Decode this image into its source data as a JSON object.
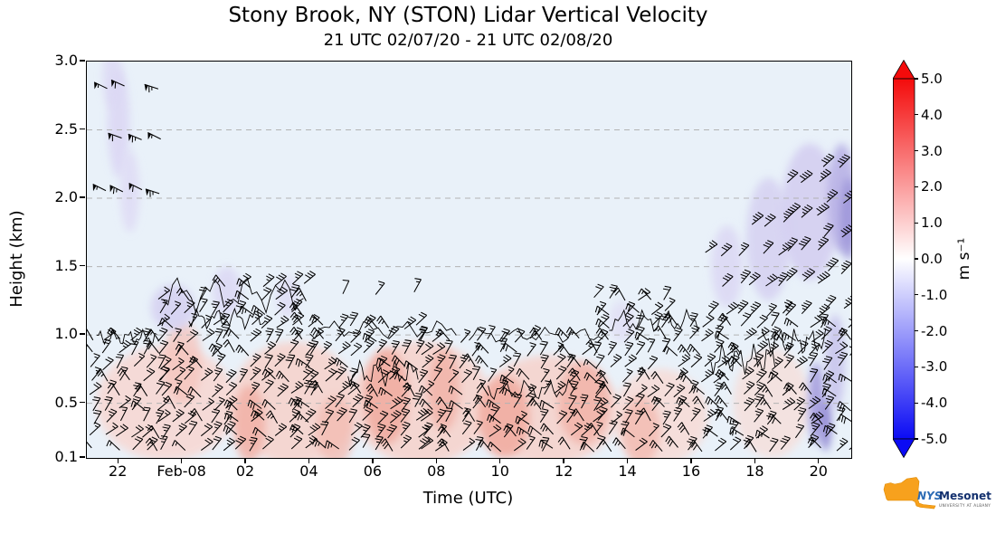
{
  "chart_data": {
    "type": "time-height lidar wind-barb / filled vertical-velocity plot",
    "title": "Stony Brook, NY (STON) Lidar Vertical Velocity",
    "subtitle": "21 UTC 02/07/20 - 21 UTC 02/08/20",
    "xlabel": "Time (UTC)",
    "ylabel": "Height (km)",
    "station": "STON",
    "location": "Stony Brook, NY",
    "time_span": {
      "start": "21 UTC 02/07/20",
      "end": "21 UTC 02/08/20",
      "hours": 24
    },
    "ylim_km": [
      0.1,
      3.0
    ],
    "gridlines_km": [
      0.5,
      1.0,
      1.5,
      2.0,
      2.5
    ],
    "background_color": "#e9f1f9",
    "x_ticks": [
      {
        "t": 1,
        "label": "22"
      },
      {
        "t": 3,
        "label": "Feb-08"
      },
      {
        "t": 5,
        "label": "02"
      },
      {
        "t": 7,
        "label": "04"
      },
      {
        "t": 9,
        "label": "06"
      },
      {
        "t": 11,
        "label": "08"
      },
      {
        "t": 13,
        "label": "10"
      },
      {
        "t": 15,
        "label": "12"
      },
      {
        "t": 17,
        "label": "14"
      },
      {
        "t": 19,
        "label": "16"
      },
      {
        "t": 21,
        "label": "18"
      },
      {
        "t": 23,
        "label": "20"
      }
    ],
    "y_ticks": [
      {
        "v": 3.0,
        "label": "3.0"
      },
      {
        "v": 2.5,
        "label": "2.5"
      },
      {
        "v": 2.0,
        "label": "2.0"
      },
      {
        "v": 1.5,
        "label": "1.5"
      },
      {
        "v": 1.0,
        "label": "1.0"
      },
      {
        "v": 0.5,
        "label": "0.5"
      },
      {
        "v": 0.1,
        "label": "0.1"
      }
    ],
    "colorbar": {
      "label": "m s⁻¹",
      "ticks": [
        "5.0",
        "4.0",
        "3.0",
        "2.0",
        "1.0",
        "0.0",
        "-1.0",
        "-2.0",
        "-3.0",
        "-4.0",
        "-5.0"
      ],
      "vmin": -5.0,
      "vmax": 5.0,
      "positive_color": "#f40b0b",
      "zero_color": "#ffffff",
      "negative_color": "#0b0bf4",
      "extend": "both"
    },
    "description": "Near-zero (pale blue) vertical velocity aloft; weak updrafts (~+1 m/s, pink) in the boundary layer below ~1 km; weak downdrafts (purple, -1 to -2 m/s) near barb tops and after 16 UTC 02/08. Dense wind barbs below ~1.2 km all period, 50+ kt barbs at 2-3 km from ~21:30-23:30 UTC 02/07, barb tops rising to ~2.3 km after 17 UTC 02/08.",
    "shading_blobs": [
      {
        "t": 2.5,
        "h": 0.5,
        "rt": 2.2,
        "rh": 0.42,
        "c": "#f8d7d2",
        "o": 0.85
      },
      {
        "t": 6.5,
        "h": 0.5,
        "rt": 2.0,
        "rh": 0.45,
        "c": "#f7d2cb",
        "o": 0.85
      },
      {
        "t": 10.5,
        "h": 0.5,
        "rt": 2.2,
        "rh": 0.45,
        "c": "#f7d2cb",
        "o": 0.85
      },
      {
        "t": 14.5,
        "h": 0.45,
        "rt": 2.2,
        "rh": 0.4,
        "c": "#f7d2cb",
        "o": 0.85
      },
      {
        "t": 18.0,
        "h": 0.4,
        "rt": 1.5,
        "rh": 0.35,
        "c": "#f8dad4",
        "o": 0.8
      },
      {
        "t": 21.5,
        "h": 0.5,
        "rt": 1.2,
        "rh": 0.4,
        "c": "#f8dcd6",
        "o": 0.7
      },
      {
        "t": 5.1,
        "h": 0.35,
        "rt": 0.5,
        "rh": 0.28,
        "c": "#f2b3a9",
        "o": 0.9
      },
      {
        "t": 7.8,
        "h": 0.3,
        "rt": 0.6,
        "rh": 0.25,
        "c": "#f3bcb2",
        "o": 0.8
      },
      {
        "t": 9.4,
        "h": 0.55,
        "rt": 0.7,
        "rh": 0.35,
        "c": "#f1ada2",
        "o": 0.9
      },
      {
        "t": 11.2,
        "h": 0.6,
        "rt": 0.5,
        "rh": 0.3,
        "c": "#f2b3a9",
        "o": 0.85
      },
      {
        "t": 13.1,
        "h": 0.4,
        "rt": 0.8,
        "rh": 0.3,
        "c": "#f1ada2",
        "o": 0.9
      },
      {
        "t": 15.6,
        "h": 0.5,
        "rt": 0.8,
        "rh": 0.3,
        "c": "#f2b3a9",
        "o": 0.85
      },
      {
        "t": 17.4,
        "h": 0.3,
        "rt": 0.6,
        "rh": 0.25,
        "c": "#f3bcb2",
        "o": 0.85
      },
      {
        "t": 3.0,
        "h": 0.8,
        "rt": 0.6,
        "rh": 0.3,
        "c": "#f5c5bd",
        "o": 0.8
      },
      {
        "t": 0.8,
        "h": 2.9,
        "rt": 0.3,
        "rh": 0.25,
        "c": "#dcd8f4",
        "o": 0.8
      },
      {
        "t": 1.0,
        "h": 2.55,
        "rt": 0.35,
        "rh": 0.4,
        "c": "#dcd8f4",
        "o": 0.9
      },
      {
        "t": 1.35,
        "h": 2.05,
        "rt": 0.3,
        "rh": 0.3,
        "c": "#dfdbf5",
        "o": 0.85
      },
      {
        "t": 2.7,
        "h": 1.2,
        "rt": 0.7,
        "rh": 0.17,
        "c": "#d7d3f2",
        "o": 0.9
      },
      {
        "t": 4.4,
        "h": 1.32,
        "rt": 0.45,
        "rh": 0.18,
        "c": "#dcd8f4",
        "o": 0.85
      },
      {
        "t": 6.3,
        "h": 1.28,
        "rt": 0.35,
        "rh": 0.15,
        "c": "#dfdbf5",
        "o": 0.8
      },
      {
        "t": 16.8,
        "h": 1.1,
        "rt": 0.4,
        "rh": 0.15,
        "c": "#e0dcf5",
        "o": 0.7
      },
      {
        "t": 20.1,
        "h": 1.5,
        "rt": 0.5,
        "rh": 0.3,
        "c": "#dcd8f4",
        "o": 0.85
      },
      {
        "t": 21.4,
        "h": 1.7,
        "rt": 0.7,
        "rh": 0.45,
        "c": "#d7d3f2",
        "o": 0.9
      },
      {
        "t": 22.7,
        "h": 1.9,
        "rt": 0.9,
        "rh": 0.5,
        "c": "#d4cff1",
        "o": 0.9
      },
      {
        "t": 23.7,
        "h": 2.0,
        "rt": 0.45,
        "rh": 0.4,
        "c": "#b9b2e6",
        "o": 0.9
      },
      {
        "t": 23.9,
        "h": 1.85,
        "rt": 0.25,
        "rh": 0.3,
        "c": "#9f97da",
        "o": 0.9
      },
      {
        "t": 22.9,
        "h": 0.5,
        "rt": 0.25,
        "rh": 0.3,
        "c": "#a59dde",
        "o": 0.9
      },
      {
        "t": 23.2,
        "h": 0.35,
        "rt": 0.18,
        "rh": 0.2,
        "c": "#8d84d2",
        "o": 0.9
      },
      {
        "t": 23.5,
        "h": 0.8,
        "rt": 0.3,
        "rh": 0.35,
        "c": "#c5bfeb",
        "o": 0.8
      }
    ],
    "contour_segments": [
      {
        "t0": 0.3,
        "t1": 2.2,
        "h": 0.98,
        "amp": 0.06
      },
      {
        "t0": 2.4,
        "t1": 6.8,
        "h": 1.3,
        "amp": 0.14
      },
      {
        "t0": 3.2,
        "t1": 5.6,
        "h": 1.12,
        "amp": 0.08
      },
      {
        "t0": 7.0,
        "t1": 11.6,
        "h": 1.04,
        "amp": 0.07
      },
      {
        "t0": 12.0,
        "t1": 16.2,
        "h": 1.0,
        "amp": 0.06
      },
      {
        "t0": 16.4,
        "t1": 19.2,
        "h": 1.1,
        "amp": 0.09
      },
      {
        "t0": 8.2,
        "t1": 10.4,
        "h": 0.72,
        "amp": 0.1
      },
      {
        "t0": 12.6,
        "t1": 15.4,
        "h": 0.6,
        "amp": 0.08
      },
      {
        "t0": 19.6,
        "t1": 21.6,
        "h": 0.82,
        "amp": 0.12
      },
      {
        "t0": 21.2,
        "t1": 23.2,
        "h": 0.95,
        "amp": 0.1
      }
    ],
    "barb_regions": [
      {
        "name": "upper-left-jet",
        "t0": 0.6,
        "t1": 2.7,
        "dt": 0.55,
        "h0": 2.05,
        "h1": 2.95,
        "dh": 0.38,
        "angle": -155,
        "jitter": 14,
        "speed": 60,
        "prob": 0.78
      },
      {
        "name": "boundary-layer-1",
        "t0": 0.15,
        "t1": 2.3,
        "dt": 0.42,
        "h0": 0.16,
        "h1": 0.98,
        "dh": 0.1,
        "angle": -48,
        "jitter": 30,
        "speed": 20,
        "prob": 0.95,
        "crosshatch": true
      },
      {
        "name": "boundary-layer-2",
        "t0": 2.3,
        "t1": 4.3,
        "dt": 0.42,
        "h0": 0.16,
        "h1": 1.33,
        "dh": 0.1,
        "angle": -48,
        "jitter": 30,
        "speed": 20,
        "prob": 0.93,
        "crosshatch": true
      },
      {
        "name": "boundary-layer-3",
        "t0": 4.3,
        "t1": 7.0,
        "dt": 0.42,
        "h0": 0.16,
        "h1": 1.42,
        "dh": 0.1,
        "angle": -48,
        "jitter": 30,
        "speed": 25,
        "prob": 0.93,
        "crosshatch": true
      },
      {
        "name": "boundary-layer-4",
        "t0": 7.0,
        "t1": 10.5,
        "dt": 0.42,
        "h0": 0.16,
        "h1": 1.12,
        "dh": 0.1,
        "angle": -48,
        "jitter": 30,
        "speed": 25,
        "prob": 0.94,
        "crosshatch": true
      },
      {
        "name": "boundary-layer-5",
        "t0": 10.5,
        "t1": 16.0,
        "dt": 0.42,
        "h0": 0.16,
        "h1": 1.04,
        "dh": 0.1,
        "angle": -48,
        "jitter": 30,
        "speed": 20,
        "prob": 0.94,
        "crosshatch": true
      },
      {
        "name": "boundary-layer-6",
        "t0": 16.0,
        "t1": 18.5,
        "dt": 0.42,
        "h0": 0.16,
        "h1": 1.26,
        "dh": 0.1,
        "angle": -48,
        "jitter": 30,
        "speed": 20,
        "prob": 0.93,
        "crosshatch": true
      },
      {
        "name": "boundary-layer-7",
        "t0": 18.5,
        "t1": 24.0,
        "dt": 0.42,
        "h0": 0.16,
        "h1": 1.1,
        "dh": 0.1,
        "angle": -46,
        "jitter": 28,
        "speed": 25,
        "prob": 0.94,
        "crosshatch": true
      },
      {
        "name": "mid-sparse",
        "t0": 8.0,
        "t1": 10.4,
        "dt": 1.1,
        "h0": 1.3,
        "h1": 1.38,
        "dh": 0.2,
        "angle": -55,
        "jitter": 20,
        "speed": 15,
        "prob": 0.8
      },
      {
        "name": "rising-fan-1",
        "t0": 19.5,
        "t1": 20.8,
        "dt": 0.5,
        "h0": 1.15,
        "h1": 1.8,
        "dh": 0.22,
        "angle": -42,
        "jitter": 16,
        "speed": 30,
        "prob": 0.95
      },
      {
        "name": "rising-fan-2",
        "t0": 20.8,
        "t1": 22.0,
        "dt": 0.5,
        "h0": 1.15,
        "h1": 2.0,
        "dh": 0.22,
        "angle": -42,
        "jitter": 16,
        "speed": 30,
        "prob": 0.95
      },
      {
        "name": "rising-fan-3",
        "t0": 22.0,
        "t1": 23.2,
        "dt": 0.5,
        "h0": 1.15,
        "h1": 2.2,
        "dh": 0.24,
        "angle": -42,
        "jitter": 16,
        "speed": 35,
        "prob": 0.95
      },
      {
        "name": "rising-fan-4",
        "t0": 23.2,
        "t1": 24.0,
        "dt": 0.5,
        "h0": 1.2,
        "h1": 2.35,
        "dh": 0.26,
        "angle": -42,
        "jitter": 16,
        "speed": 35,
        "prob": 0.95
      }
    ]
  },
  "logo": {
    "name": "NYS Mesonet",
    "text_nys": "NYS",
    "text_mesonet": "Mesonet",
    "text_sub": "UNIVERSITY AT ALBANY",
    "state_color": "#f7a11d",
    "nys_color": "#2d6cb5",
    "mesonet_color": "#13306e",
    "sub_color": "#555555"
  }
}
